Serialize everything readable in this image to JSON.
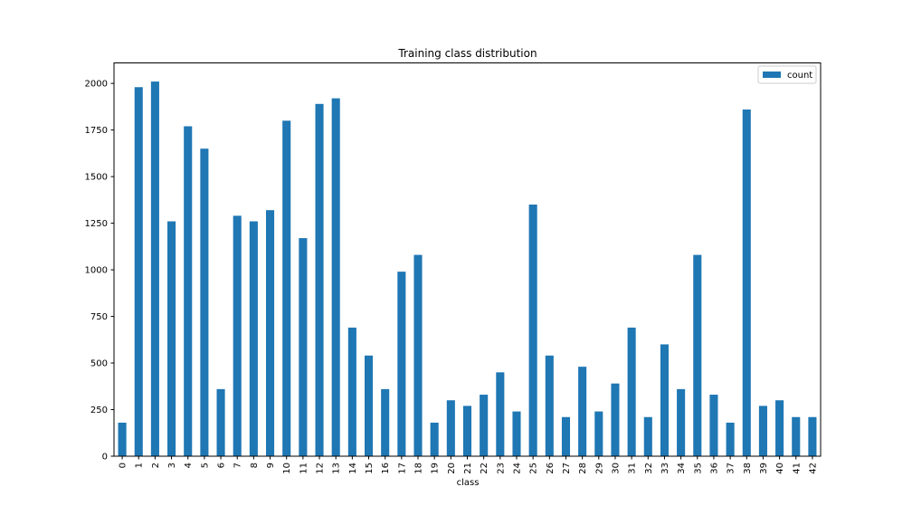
{
  "chart_data": {
    "type": "bar",
    "title": "Training class distribution",
    "xlabel": "class",
    "ylabel": "",
    "categories": [
      "0",
      "1",
      "2",
      "3",
      "4",
      "5",
      "6",
      "7",
      "8",
      "9",
      "10",
      "11",
      "12",
      "13",
      "14",
      "15",
      "16",
      "17",
      "18",
      "19",
      "20",
      "21",
      "22",
      "23",
      "24",
      "25",
      "26",
      "27",
      "28",
      "29",
      "30",
      "31",
      "32",
      "33",
      "34",
      "35",
      "36",
      "37",
      "38",
      "39",
      "40",
      "41",
      "42"
    ],
    "series": [
      {
        "name": "count",
        "color": "#1f77b4",
        "values": [
          180,
          1980,
          2010,
          1260,
          1770,
          1650,
          360,
          1290,
          1260,
          1320,
          1800,
          1170,
          1890,
          1920,
          690,
          540,
          360,
          990,
          1080,
          180,
          300,
          270,
          330,
          450,
          240,
          1350,
          540,
          210,
          480,
          240,
          390,
          690,
          210,
          600,
          360,
          1080,
          330,
          180,
          1860,
          270,
          300,
          210,
          210
        ]
      }
    ],
    "ylim": [
      0,
      2110
    ],
    "yticks": [
      0,
      250,
      500,
      750,
      1000,
      1250,
      1500,
      1750,
      2000
    ],
    "grid": false,
    "legend_position": "top-right"
  }
}
